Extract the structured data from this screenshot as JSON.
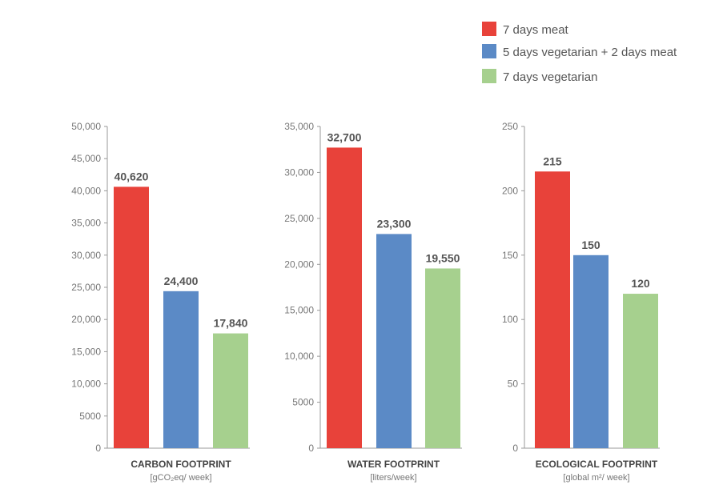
{
  "colors": {
    "meat": "#e8423a",
    "mixed": "#5b8ac6",
    "vegetarian": "#a6d08e"
  },
  "legend": [
    {
      "label": "7 days meat",
      "color": "#e8423a"
    },
    {
      "label": "5 days vegetarian + 2 days meat",
      "color": "#5b8ac6"
    },
    {
      "label": "7 days vegetarian",
      "color": "#a6d08e"
    }
  ],
  "chart_data": [
    {
      "type": "bar",
      "xlabel": "CARBON FOOTPRINT",
      "unit": "[gCO₂eq/ week]",
      "categories": [
        "7 days meat",
        "5 days vegetarian + 2 days meat",
        "7 days vegetarian"
      ],
      "values": [
        40620,
        24400,
        17840
      ],
      "value_labels": [
        "40,620",
        "24,400",
        "17,840"
      ],
      "ylim": [
        0,
        50000
      ],
      "yticks": [
        "0",
        "5000",
        "10,000",
        "15,000",
        "20,000",
        "25,000",
        "30,000",
        "35,000",
        "40,000",
        "45,000",
        "50,000"
      ],
      "ytick_values": [
        0,
        5000,
        10000,
        15000,
        20000,
        25000,
        30000,
        35000,
        40000,
        45000,
        50000
      ]
    },
    {
      "type": "bar",
      "xlabel": "WATER FOOTPRINT",
      "unit": "[liters/week]",
      "categories": [
        "7 days meat",
        "5 days vegetarian + 2 days meat",
        "7 days vegetarian"
      ],
      "values": [
        32700,
        23300,
        19550
      ],
      "value_labels": [
        "32,700",
        "23,300",
        "19,550"
      ],
      "ylim": [
        0,
        35000
      ],
      "yticks": [
        "0",
        "5000",
        "10,000",
        "15,000",
        "20,000",
        "25,000",
        "30,000",
        "35,000"
      ],
      "ytick_values": [
        0,
        5000,
        10000,
        15000,
        20000,
        25000,
        30000,
        35000
      ]
    },
    {
      "type": "bar",
      "xlabel": "ECOLOGICAL FOOTPRINT",
      "unit": "[global m²/ week]",
      "categories": [
        "7 days meat",
        "5 days vegetarian + 2 days meat",
        "7 days vegetarian"
      ],
      "values": [
        215,
        150,
        120
      ],
      "value_labels": [
        "215",
        "150",
        "120"
      ],
      "ylim": [
        0,
        250
      ],
      "yticks": [
        "0",
        "50",
        "100",
        "150",
        "200",
        "250"
      ],
      "ytick_values": [
        0,
        50,
        100,
        150,
        200,
        250
      ]
    }
  ]
}
